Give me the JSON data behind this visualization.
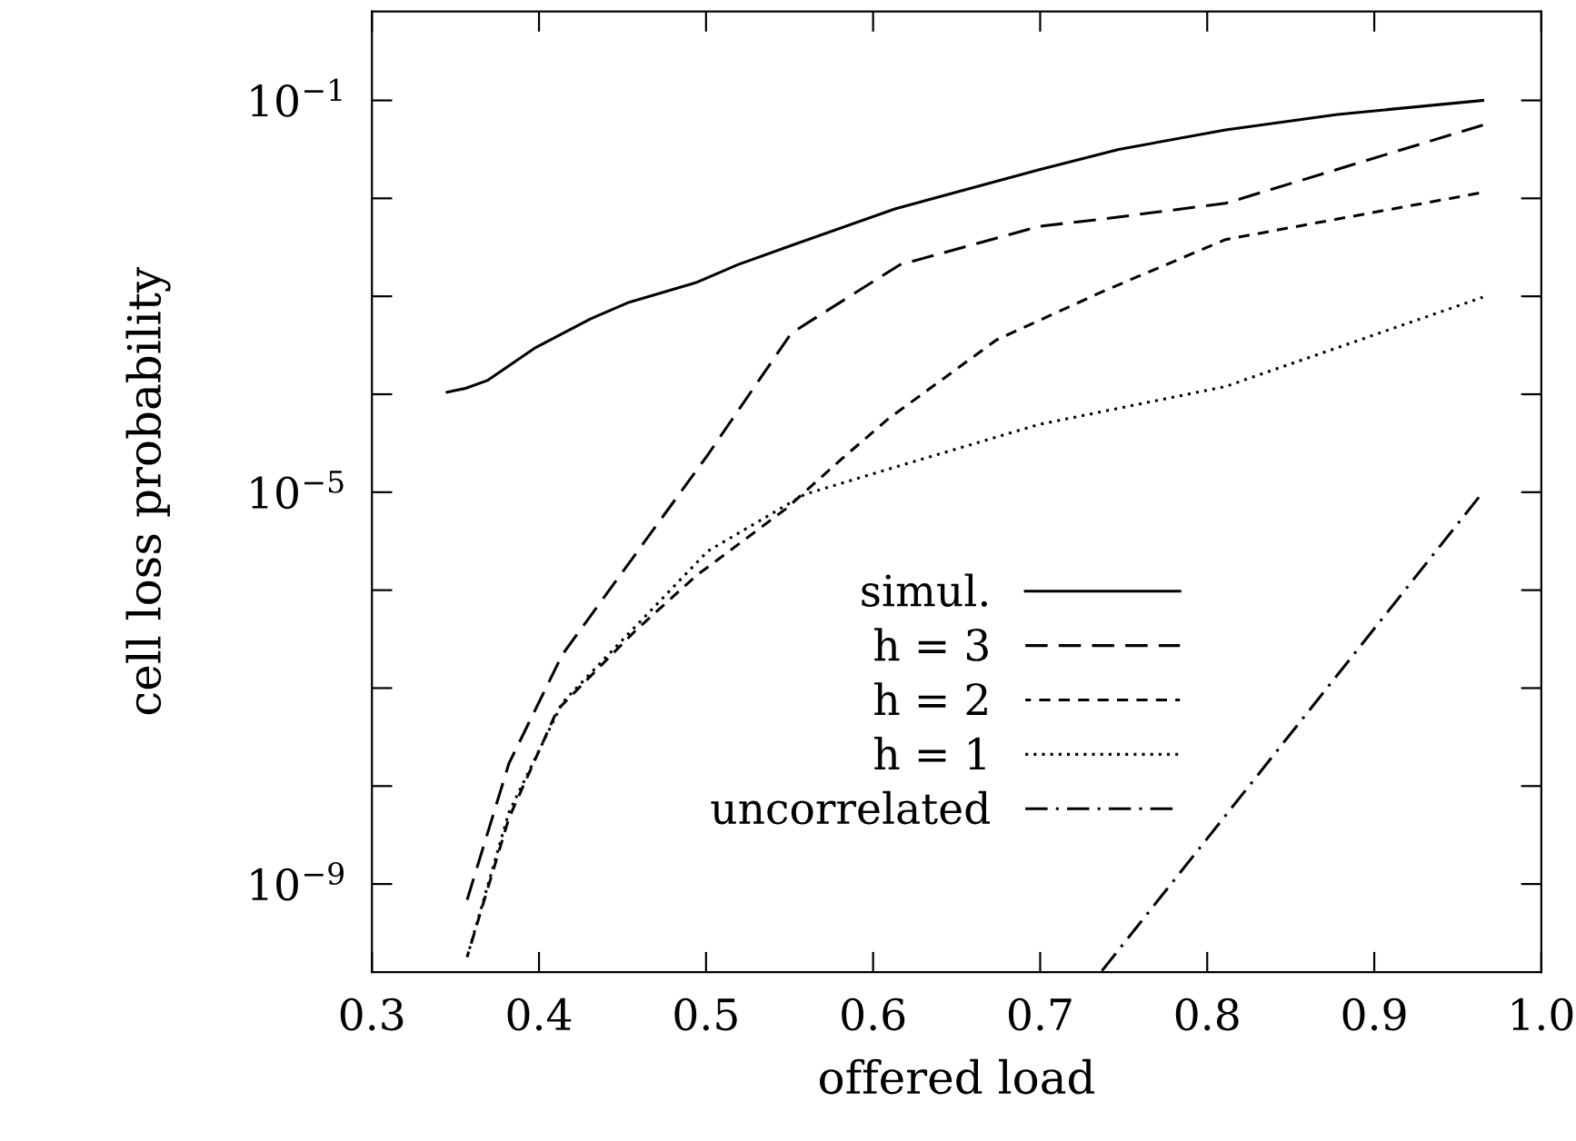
{
  "chart_data": {
    "type": "line",
    "xlabel": "offered load",
    "ylabel": "cell loss probability",
    "log": "y",
    "xlim": [
      0.3,
      1.0
    ],
    "ylim": [
      1.26e-10,
      0.81
    ],
    "xticks": [
      0.3,
      0.4,
      0.5,
      0.6,
      0.7,
      0.8,
      0.9,
      {
        "value": 1.0,
        "label": "1.0"
      }
    ],
    "yticks": [
      {
        "value": 0.1,
        "label": "10$^{−1}$"
      },
      {
        "value": 0.01,
        "label": null
      },
      {
        "value": 0.001,
        "label": null
      },
      {
        "value": 0.0001,
        "label": null
      },
      {
        "value": 1e-05,
        "label": "10$^{−5}$"
      },
      {
        "value": 1e-06,
        "label": null
      },
      {
        "value": 1e-07,
        "label": null
      },
      {
        "value": 1e-08,
        "label": null
      },
      {
        "value": 1e-09,
        "label": "10$^{−9}$"
      }
    ],
    "grid": false,
    "legend": "bottom",
    "marker": "none",
    "series": [
      {
        "name": "simul.",
        "color": "#000000",
        "line_style": "solid",
        "x": [
          0.345,
          0.356,
          0.369,
          0.398,
          0.431,
          0.454,
          0.494,
          0.519,
          0.551,
          0.613,
          0.699,
          0.747,
          0.811,
          0.878,
          0.965
        ],
        "values": [
          0.000105,
          0.000115,
          0.000138,
          0.0003,
          0.00059,
          0.00087,
          0.00138,
          0.0021,
          0.0033,
          0.0078,
          0.0195,
          0.0316,
          0.05,
          0.072,
          0.1
        ]
      },
      {
        "name": "h = 3",
        "color": "#000000",
        "line_style": "long-dashed",
        "x": [
          0.357,
          0.382,
          0.414,
          0.501,
          0.551,
          0.616,
          0.7,
          0.739,
          0.811,
          0.965
        ],
        "values": [
          6.9e-10,
          1.7e-08,
          2.2e-07,
          2.4e-05,
          0.00042,
          0.0021,
          0.0052,
          0.0062,
          0.0089,
          0.056
        ]
      },
      {
        "name": "h = 2",
        "color": "#000000",
        "line_style": "dashed",
        "x": [
          0.357,
          0.382,
          0.411,
          0.458,
          0.494,
          0.548,
          0.58,
          0.609,
          0.674,
          0.739,
          0.811,
          0.965
        ],
        "values": [
          1.8e-10,
          4.7e-09,
          6e-08,
          3.9e-07,
          1.4e-06,
          6.8e-06,
          2.1e-05,
          5.6e-05,
          0.00036,
          0.00115,
          0.0038,
          0.0115
        ]
      },
      {
        "name": "h = 1",
        "color": "#000000",
        "line_style": "dotted",
        "x": [
          0.357,
          0.382,
          0.414,
          0.501,
          0.559,
          0.613,
          0.699,
          0.811,
          0.965
        ],
        "values": [
          1.8e-10,
          5.4e-09,
          7.1e-08,
          2.5e-06,
          9.5e-06,
          1.8e-05,
          4.9e-05,
          0.00012,
          0.00098
        ]
      },
      {
        "name": "uncorrelated",
        "color": "#000000",
        "line_style": "dashdot",
        "x": [
          0.737,
          0.965
        ],
        "values": [
          1.3e-10,
          1e-05
        ]
      }
    ]
  }
}
